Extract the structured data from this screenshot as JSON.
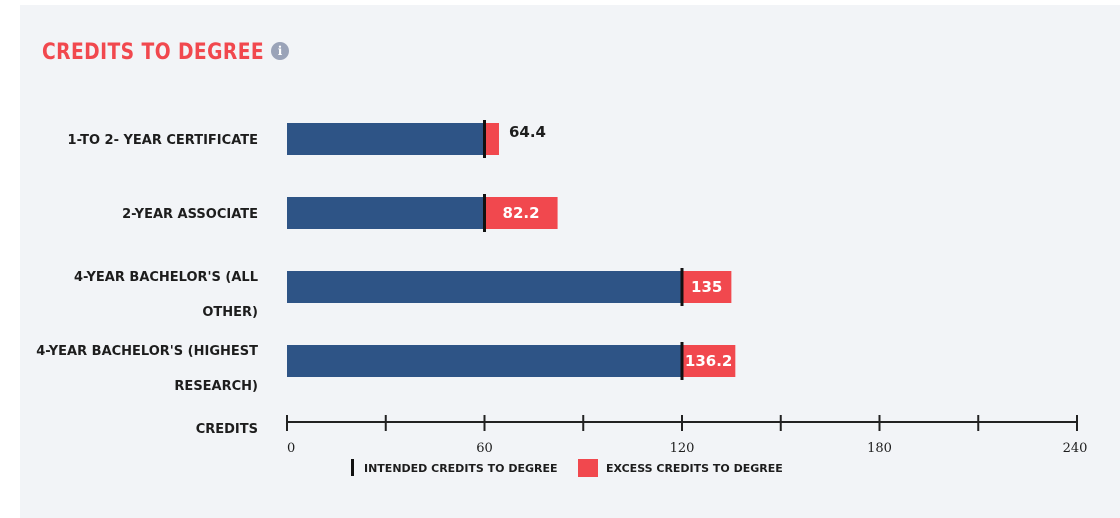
{
  "header": {
    "title": "CREDITS TO DEGREE",
    "info_icon": "info-icon"
  },
  "colors": {
    "intended": "#2e5486",
    "excess": "#f1484e",
    "marker": "#111111",
    "title": "#f1484e"
  },
  "chart_data": {
    "type": "bar",
    "orientation": "horizontal",
    "stacked": true,
    "categories": [
      [
        "1-TO 2- YEAR CERTIFICATE"
      ],
      [
        "2-YEAR ASSOCIATE"
      ],
      [
        "4-YEAR BACHELOR'S (ALL",
        "OTHER)"
      ],
      [
        "4-YEAR BACHELOR'S (HIGHEST",
        "RESEARCH)"
      ]
    ],
    "series": [
      {
        "name": "INTENDED CREDITS TO DEGREE",
        "values": [
          60,
          60,
          120,
          120
        ]
      },
      {
        "name": "EXCESS CREDITS TO DEGREE",
        "values": [
          4.4,
          22.2,
          15,
          16.2
        ]
      }
    ],
    "totals": [
      "64.4",
      "82.2",
      "135",
      "136.2"
    ],
    "xlabel": "CREDITS",
    "xlim": [
      0,
      240
    ],
    "xticks": [
      0,
      60,
      120,
      180,
      240
    ],
    "minor_tick_step": 30,
    "legend_position": "bottom"
  }
}
